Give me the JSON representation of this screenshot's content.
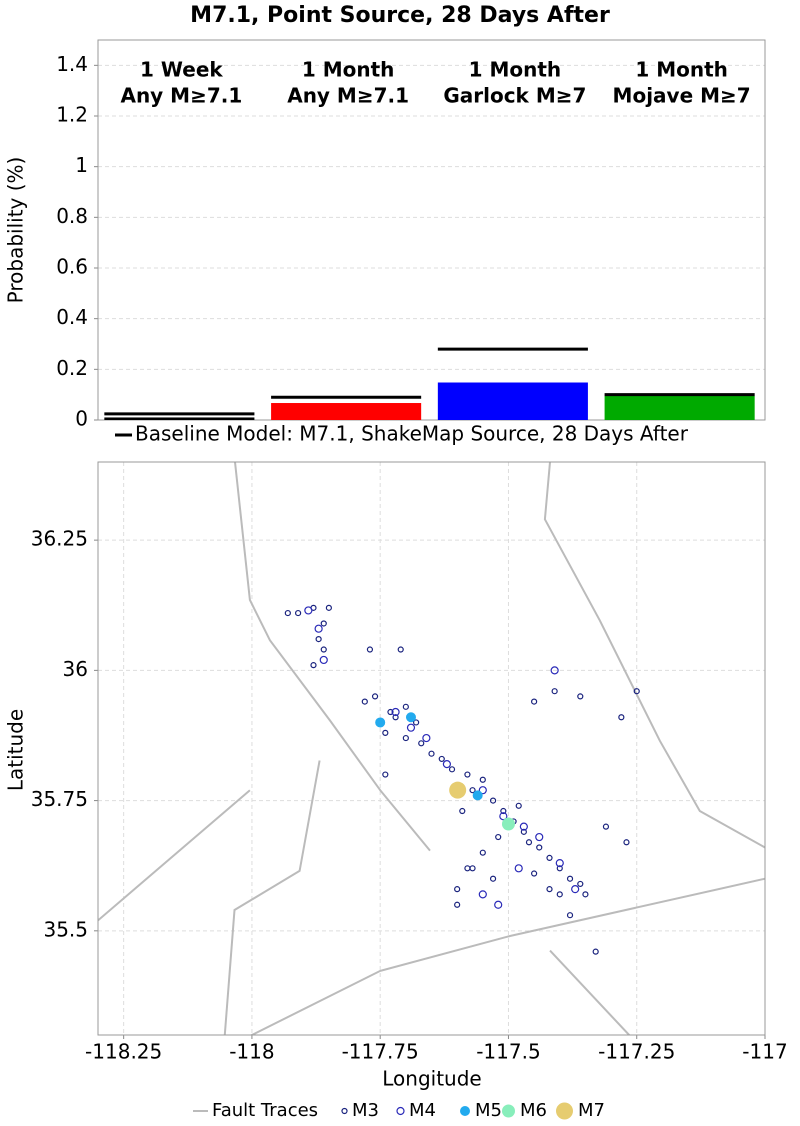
{
  "chart_data": [
    {
      "type": "bar",
      "title": "M7.1, Point Source, 28 Days After",
      "ylabel": "Probability (%)",
      "categories": [
        [
          "1 Week",
          "Any M≥7.1"
        ],
        [
          "1 Month",
          "Any M≥7.1"
        ],
        [
          "1 Month",
          "Garlock M≥7"
        ],
        [
          "1 Month",
          "Mojave M≥7"
        ]
      ],
      "values": [
        0.01,
        0.067,
        0.148,
        0.095
      ],
      "colors": [
        "#000000",
        "#ff0000",
        "#0000ff",
        "#00aa00"
      ],
      "baseline": {
        "name": "Baseline Model: M7.1, ShakeMap Source, 28 Days After",
        "color": "#000000",
        "values": [
          0.024,
          0.09,
          0.28,
          0.1
        ]
      },
      "ylim": [
        0,
        1.5
      ],
      "yticks": [
        0,
        0.2,
        0.4,
        0.6,
        0.8,
        1,
        1.2,
        1.4
      ],
      "grid": true
    },
    {
      "type": "scatter",
      "xlabel": "Longitude",
      "ylabel": "Latitude",
      "xlim": [
        -118.3,
        -117
      ],
      "ylim": [
        35.3,
        36.4
      ],
      "xticks": [
        -118.25,
        -118,
        -117.75,
        -117.5,
        -117.25,
        -117
      ],
      "yticks": [
        35.5,
        35.75,
        36,
        36.25
      ],
      "grid": true,
      "series": [
        {
          "name": "Fault Traces",
          "type": "line",
          "color": "#bbbbbb",
          "x": [
            -118.004,
            -117.75,
            -117.497,
            -117.0,
            null,
            -118.3,
            -118.004,
            null,
            -118.033,
            -118.004,
            -117.965,
            -117.848,
            -117.75,
            -117.653,
            null,
            -117.419,
            -117.429,
            -117.322,
            -117.205,
            -117.127,
            -117.0,
            null,
            -117.419,
            -117.263,
            null,
            -118.053,
            -118.034,
            -117.907,
            -117.868
          ],
          "y": [
            35.298,
            35.423,
            35.49,
            35.6,
            null,
            35.52,
            35.77,
            null,
            36.4,
            36.135,
            36.058,
            35.904,
            35.77,
            35.654,
            null,
            36.4,
            36.29,
            36.096,
            35.865,
            35.73,
            35.66,
            null,
            35.462,
            35.298,
            null,
            35.298,
            35.54,
            35.615,
            35.827
          ]
        },
        {
          "name": "M3",
          "color": "#1a237e",
          "filled": false,
          "x": [
            -117.91,
            -117.88,
            -117.85,
            -117.86,
            -117.87,
            -117.86,
            -117.88,
            -117.93,
            -117.77,
            -117.71,
            -117.76,
            -117.78,
            -117.73,
            -117.72,
            -117.7,
            -117.68,
            -117.74,
            -117.7,
            -117.67,
            -117.65,
            -117.63,
            -117.61,
            -117.58,
            -117.55,
            -117.57,
            -117.53,
            -117.51,
            -117.49,
            -117.47,
            -117.46,
            -117.44,
            -117.42,
            -117.4,
            -117.38,
            -117.36,
            -117.35,
            -117.42,
            -117.45,
            -117.52,
            -117.55,
            -117.58,
            -117.6,
            -117.53,
            -117.41,
            -117.45,
            -117.36,
            -117.25,
            -117.28,
            -117.31,
            -117.27,
            -117.33,
            -117.6,
            -117.57,
            -117.74,
            -117.59,
            -117.48,
            -117.4,
            -117.38
          ],
          "y": [
            36.11,
            36.12,
            36.12,
            36.09,
            36.06,
            36.04,
            36.01,
            36.11,
            36.04,
            36.04,
            35.95,
            35.94,
            35.92,
            35.91,
            35.93,
            35.9,
            35.88,
            35.87,
            35.86,
            35.84,
            35.83,
            35.81,
            35.8,
            35.79,
            35.77,
            35.75,
            35.73,
            35.71,
            35.69,
            35.67,
            35.66,
            35.64,
            35.62,
            35.6,
            35.59,
            35.57,
            35.58,
            35.61,
            35.68,
            35.65,
            35.62,
            35.58,
            35.6,
            35.96,
            35.94,
            35.95,
            35.96,
            35.91,
            35.7,
            35.67,
            35.46,
            35.55,
            35.62,
            35.8,
            35.73,
            35.74,
            35.57,
            35.53
          ]
        },
        {
          "name": "M4",
          "color": "#2a2ab8",
          "filled": false,
          "x": [
            -117.89,
            -117.87,
            -117.86,
            -117.72,
            -117.69,
            -117.66,
            -117.62,
            -117.55,
            -117.51,
            -117.47,
            -117.44,
            -117.4,
            -117.37,
            -117.55,
            -117.52,
            -117.41,
            -117.48
          ],
          "y": [
            36.115,
            36.08,
            36.02,
            35.92,
            35.89,
            35.87,
            35.82,
            35.77,
            35.72,
            35.7,
            35.68,
            35.63,
            35.58,
            35.57,
            35.55,
            36.0,
            35.62
          ]
        },
        {
          "name": "M5",
          "color": "#22aaee",
          "filled": true,
          "x": [
            -117.75,
            -117.69,
            -117.56
          ],
          "y": [
            35.9,
            35.91,
            35.76
          ]
        },
        {
          "name": "M6",
          "color": "#88eebb",
          "filled": true,
          "x": [
            -117.5
          ],
          "y": [
            35.705
          ]
        },
        {
          "name": "M7",
          "color": "#e6cc70",
          "filled": true,
          "x": [
            -117.599
          ],
          "y": [
            35.77
          ]
        }
      ]
    }
  ]
}
